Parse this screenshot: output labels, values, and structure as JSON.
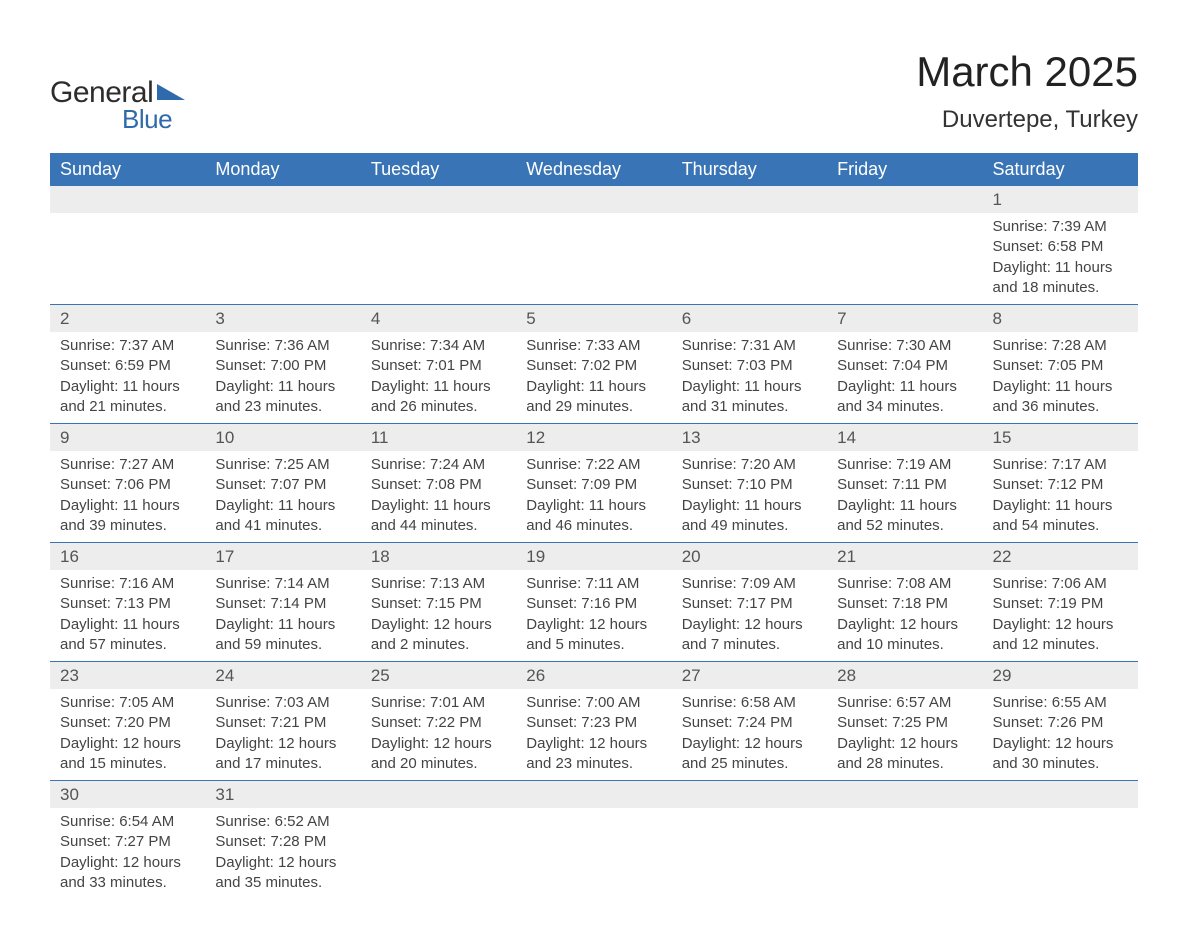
{
  "logo": {
    "word1": "General",
    "word2": "Blue"
  },
  "title": "March 2025",
  "location": "Duvertepe, Turkey",
  "colors": {
    "header_bg": "#3975b6",
    "header_text": "#ffffff",
    "daynum_bg": "#ededed",
    "row_divider": "#3975b6",
    "text": "#3a3a3a",
    "logo_blue": "#2f6bac"
  },
  "typography": {
    "title_fontsize": 42,
    "location_fontsize": 24,
    "header_fontsize": 18,
    "daynum_fontsize": 17,
    "detail_fontsize": 15
  },
  "day_headers": [
    "Sunday",
    "Monday",
    "Tuesday",
    "Wednesday",
    "Thursday",
    "Friday",
    "Saturday"
  ],
  "weeks": [
    [
      null,
      null,
      null,
      null,
      null,
      null,
      {
        "n": "1",
        "sunrise": "Sunrise: 7:39 AM",
        "sunset": "Sunset: 6:58 PM",
        "dl1": "Daylight: 11 hours",
        "dl2": "and 18 minutes."
      }
    ],
    [
      {
        "n": "2",
        "sunrise": "Sunrise: 7:37 AM",
        "sunset": "Sunset: 6:59 PM",
        "dl1": "Daylight: 11 hours",
        "dl2": "and 21 minutes."
      },
      {
        "n": "3",
        "sunrise": "Sunrise: 7:36 AM",
        "sunset": "Sunset: 7:00 PM",
        "dl1": "Daylight: 11 hours",
        "dl2": "and 23 minutes."
      },
      {
        "n": "4",
        "sunrise": "Sunrise: 7:34 AM",
        "sunset": "Sunset: 7:01 PM",
        "dl1": "Daylight: 11 hours",
        "dl2": "and 26 minutes."
      },
      {
        "n": "5",
        "sunrise": "Sunrise: 7:33 AM",
        "sunset": "Sunset: 7:02 PM",
        "dl1": "Daylight: 11 hours",
        "dl2": "and 29 minutes."
      },
      {
        "n": "6",
        "sunrise": "Sunrise: 7:31 AM",
        "sunset": "Sunset: 7:03 PM",
        "dl1": "Daylight: 11 hours",
        "dl2": "and 31 minutes."
      },
      {
        "n": "7",
        "sunrise": "Sunrise: 7:30 AM",
        "sunset": "Sunset: 7:04 PM",
        "dl1": "Daylight: 11 hours",
        "dl2": "and 34 minutes."
      },
      {
        "n": "8",
        "sunrise": "Sunrise: 7:28 AM",
        "sunset": "Sunset: 7:05 PM",
        "dl1": "Daylight: 11 hours",
        "dl2": "and 36 minutes."
      }
    ],
    [
      {
        "n": "9",
        "sunrise": "Sunrise: 7:27 AM",
        "sunset": "Sunset: 7:06 PM",
        "dl1": "Daylight: 11 hours",
        "dl2": "and 39 minutes."
      },
      {
        "n": "10",
        "sunrise": "Sunrise: 7:25 AM",
        "sunset": "Sunset: 7:07 PM",
        "dl1": "Daylight: 11 hours",
        "dl2": "and 41 minutes."
      },
      {
        "n": "11",
        "sunrise": "Sunrise: 7:24 AM",
        "sunset": "Sunset: 7:08 PM",
        "dl1": "Daylight: 11 hours",
        "dl2": "and 44 minutes."
      },
      {
        "n": "12",
        "sunrise": "Sunrise: 7:22 AM",
        "sunset": "Sunset: 7:09 PM",
        "dl1": "Daylight: 11 hours",
        "dl2": "and 46 minutes."
      },
      {
        "n": "13",
        "sunrise": "Sunrise: 7:20 AM",
        "sunset": "Sunset: 7:10 PM",
        "dl1": "Daylight: 11 hours",
        "dl2": "and 49 minutes."
      },
      {
        "n": "14",
        "sunrise": "Sunrise: 7:19 AM",
        "sunset": "Sunset: 7:11 PM",
        "dl1": "Daylight: 11 hours",
        "dl2": "and 52 minutes."
      },
      {
        "n": "15",
        "sunrise": "Sunrise: 7:17 AM",
        "sunset": "Sunset: 7:12 PM",
        "dl1": "Daylight: 11 hours",
        "dl2": "and 54 minutes."
      }
    ],
    [
      {
        "n": "16",
        "sunrise": "Sunrise: 7:16 AM",
        "sunset": "Sunset: 7:13 PM",
        "dl1": "Daylight: 11 hours",
        "dl2": "and 57 minutes."
      },
      {
        "n": "17",
        "sunrise": "Sunrise: 7:14 AM",
        "sunset": "Sunset: 7:14 PM",
        "dl1": "Daylight: 11 hours",
        "dl2": "and 59 minutes."
      },
      {
        "n": "18",
        "sunrise": "Sunrise: 7:13 AM",
        "sunset": "Sunset: 7:15 PM",
        "dl1": "Daylight: 12 hours",
        "dl2": "and 2 minutes."
      },
      {
        "n": "19",
        "sunrise": "Sunrise: 7:11 AM",
        "sunset": "Sunset: 7:16 PM",
        "dl1": "Daylight: 12 hours",
        "dl2": "and 5 minutes."
      },
      {
        "n": "20",
        "sunrise": "Sunrise: 7:09 AM",
        "sunset": "Sunset: 7:17 PM",
        "dl1": "Daylight: 12 hours",
        "dl2": "and 7 minutes."
      },
      {
        "n": "21",
        "sunrise": "Sunrise: 7:08 AM",
        "sunset": "Sunset: 7:18 PM",
        "dl1": "Daylight: 12 hours",
        "dl2": "and 10 minutes."
      },
      {
        "n": "22",
        "sunrise": "Sunrise: 7:06 AM",
        "sunset": "Sunset: 7:19 PM",
        "dl1": "Daylight: 12 hours",
        "dl2": "and 12 minutes."
      }
    ],
    [
      {
        "n": "23",
        "sunrise": "Sunrise: 7:05 AM",
        "sunset": "Sunset: 7:20 PM",
        "dl1": "Daylight: 12 hours",
        "dl2": "and 15 minutes."
      },
      {
        "n": "24",
        "sunrise": "Sunrise: 7:03 AM",
        "sunset": "Sunset: 7:21 PM",
        "dl1": "Daylight: 12 hours",
        "dl2": "and 17 minutes."
      },
      {
        "n": "25",
        "sunrise": "Sunrise: 7:01 AM",
        "sunset": "Sunset: 7:22 PM",
        "dl1": "Daylight: 12 hours",
        "dl2": "and 20 minutes."
      },
      {
        "n": "26",
        "sunrise": "Sunrise: 7:00 AM",
        "sunset": "Sunset: 7:23 PM",
        "dl1": "Daylight: 12 hours",
        "dl2": "and 23 minutes."
      },
      {
        "n": "27",
        "sunrise": "Sunrise: 6:58 AM",
        "sunset": "Sunset: 7:24 PM",
        "dl1": "Daylight: 12 hours",
        "dl2": "and 25 minutes."
      },
      {
        "n": "28",
        "sunrise": "Sunrise: 6:57 AM",
        "sunset": "Sunset: 7:25 PM",
        "dl1": "Daylight: 12 hours",
        "dl2": "and 28 minutes."
      },
      {
        "n": "29",
        "sunrise": "Sunrise: 6:55 AM",
        "sunset": "Sunset: 7:26 PM",
        "dl1": "Daylight: 12 hours",
        "dl2": "and 30 minutes."
      }
    ],
    [
      {
        "n": "30",
        "sunrise": "Sunrise: 6:54 AM",
        "sunset": "Sunset: 7:27 PM",
        "dl1": "Daylight: 12 hours",
        "dl2": "and 33 minutes."
      },
      {
        "n": "31",
        "sunrise": "Sunrise: 6:52 AM",
        "sunset": "Sunset: 7:28 PM",
        "dl1": "Daylight: 12 hours",
        "dl2": "and 35 minutes."
      },
      null,
      null,
      null,
      null,
      null
    ]
  ]
}
